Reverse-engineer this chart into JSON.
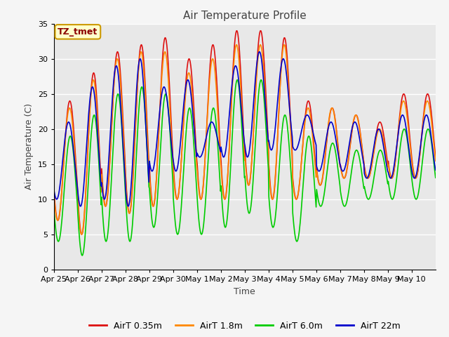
{
  "title": "Air Temperature Profile",
  "xlabel": "Time",
  "ylabel": "Air Temperature (C)",
  "ylim": [
    0,
    35
  ],
  "background_color": "#f5f5f5",
  "plot_bg_color": "#e8e8e8",
  "grid_color": "white",
  "annotation_label": "TZ_tmet",
  "annotation_bg": "#ffffcc",
  "annotation_border": "#cc9900",
  "annotation_text_color": "#8b0000",
  "lines": [
    {
      "label": "AirT 0.35m",
      "color": "#dd1111",
      "lw": 1.2
    },
    {
      "label": "AirT 1.8m",
      "color": "#ff8800",
      "lw": 1.2
    },
    {
      "label": "AirT 6.0m",
      "color": "#00cc00",
      "lw": 1.2
    },
    {
      "label": "AirT 22m",
      "color": "#0000cc",
      "lw": 1.2
    }
  ],
  "xtick_labels": [
    "Apr 25",
    "Apr 26",
    "Apr 27",
    "Apr 28",
    "Apr 29",
    "Apr 30",
    "May 1",
    "May 2",
    "May 3",
    "May 4",
    "May 5",
    "May 6",
    "May 7",
    "May 8",
    "May 9",
    "May 10"
  ],
  "num_days": 16,
  "samples_per_day": 48
}
